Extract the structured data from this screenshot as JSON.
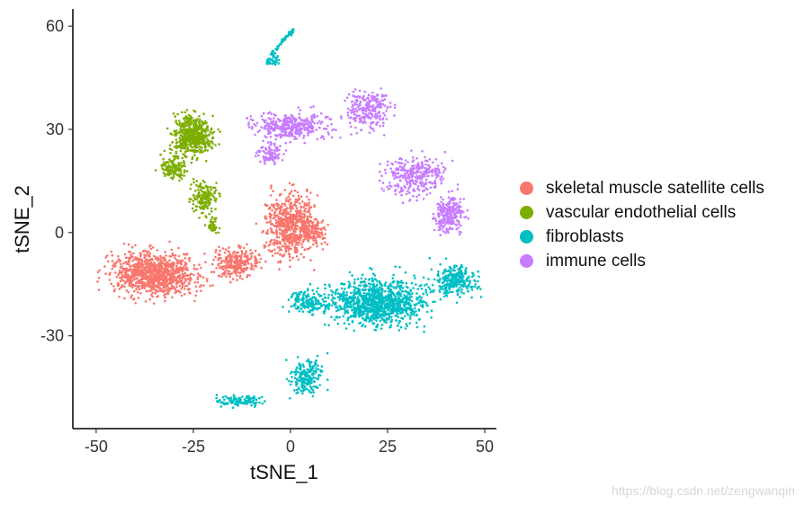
{
  "chart_data": {
    "type": "scatter",
    "xlabel": "tSNE_1",
    "ylabel": "tSNE_2",
    "xlim": [
      -56,
      53
    ],
    "ylim": [
      -57,
      65
    ],
    "x_ticks": [
      -50,
      -25,
      0,
      25,
      50
    ],
    "y_ticks": [
      -30,
      0,
      30,
      60
    ],
    "x_tick_labels": [
      "-50",
      "-25",
      "0",
      "25",
      "50"
    ],
    "y_tick_labels": [
      "-30",
      "0",
      "30",
      "60"
    ],
    "grid": false,
    "legend_position": "right",
    "series": [
      {
        "name": "skeletal muscle satellite cells",
        "color": "#F8766D",
        "clusters": [
          {
            "center": [
              -35,
              -12
            ],
            "spread": [
              10,
              5.5
            ],
            "n": 950
          },
          {
            "center": [
              -14,
              -9
            ],
            "spread": [
              5,
              4
            ],
            "n": 260
          },
          {
            "center": [
              0,
              2
            ],
            "spread": [
              5.5,
              8
            ],
            "n": 650
          },
          {
            "center": [
              6,
              1
            ],
            "spread": [
              3,
              4
            ],
            "n": 120
          }
        ]
      },
      {
        "name": "vascular endothelial cells",
        "color": "#7CAE00",
        "clusters": [
          {
            "center": [
              -25,
              28
            ],
            "spread": [
              4.5,
              5
            ],
            "n": 520
          },
          {
            "center": [
              -30,
              19
            ],
            "spread": [
              3,
              3
            ],
            "n": 140
          },
          {
            "center": [
              -22,
              10
            ],
            "spread": [
              3,
              4
            ],
            "n": 160
          },
          {
            "center": [
              -20,
              2
            ],
            "spread": [
              1.5,
              2
            ],
            "n": 40
          }
        ]
      },
      {
        "name": "fibroblasts",
        "color": "#00BFC4",
        "clusters": [
          {
            "center": [
              22,
              -20
            ],
            "spread": [
              11,
              6
            ],
            "n": 1050
          },
          {
            "center": [
              42,
              -14
            ],
            "spread": [
              5,
              4
            ],
            "n": 280
          },
          {
            "center": [
              5,
              -20
            ],
            "spread": [
              5,
              3
            ],
            "n": 160
          },
          {
            "center": [
              4,
              -42
            ],
            "spread": [
              3.5,
              5
            ],
            "n": 200
          },
          {
            "center": [
              -13,
              -49
            ],
            "spread": [
              5,
              1.5
            ],
            "n": 120
          },
          {
            "center": [
              -4,
              50
            ],
            "spread": [
              1.2,
              1.5
            ],
            "n": 25
          }
        ],
        "curve": [
          [
            -6,
            49
          ],
          [
            -4,
            53
          ],
          [
            -1,
            57
          ],
          [
            1,
            59
          ]
        ]
      },
      {
        "name": "immune cells",
        "color": "#C77CFF",
        "clusters": [
          {
            "center": [
              0,
              31
            ],
            "spread": [
              8,
              3.5
            ],
            "n": 360
          },
          {
            "center": [
              20,
              36
            ],
            "spread": [
              5,
              5
            ],
            "n": 240
          },
          {
            "center": [
              32,
              16
            ],
            "spread": [
              7,
              5
            ],
            "n": 300
          },
          {
            "center": [
              41,
              5
            ],
            "spread": [
              3.5,
              5
            ],
            "n": 220
          },
          {
            "center": [
              -5,
              23
            ],
            "spread": [
              3,
              2.5
            ],
            "n": 90
          }
        ]
      }
    ]
  },
  "watermark": "https://blog.csdn.net/zengwanqin"
}
